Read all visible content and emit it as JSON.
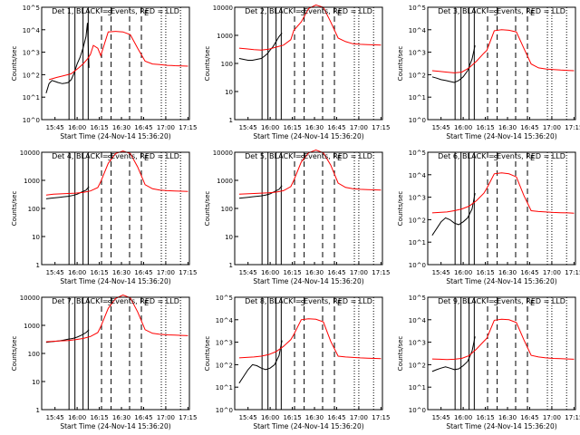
{
  "figure": {
    "start_time_label": "Start Time (24-Nov-14 15:36:20)",
    "ylabel": "Counts/sec",
    "x_ticks": [
      "15:45",
      "16:00",
      "16:15",
      "16:30",
      "16:45",
      "17:00",
      "17:15"
    ],
    "tick_minutes": [
      9,
      24,
      39,
      54,
      69,
      84,
      99
    ],
    "x_range_minutes_after_start": [
      0,
      100
    ],
    "colors": {
      "events": "#000000",
      "lld": "#ff0000",
      "axis": "#000000"
    },
    "vertical_markers": {
      "solid_minutes": [
        18.5,
        22.5,
        28,
        31.5
      ],
      "dashed_minutes": [
        40.5,
        47,
        59.5,
        67.5
      ],
      "dotted_minutes": [
        81,
        84,
        94
      ]
    },
    "markers": [
      "S",
      "E"
    ]
  },
  "chart_data": [
    {
      "type": "line",
      "title": "Det 1, BLACK = Events, RED = LLD",
      "ylabel": "Counts/sec",
      "scale": "log",
      "ylim": [
        1,
        100000
      ],
      "y_ticks": [
        "10^5",
        "10^4",
        "10^3",
        "10^2",
        "10^1",
        "10^0"
      ],
      "series": [
        {
          "name": "Events",
          "x": [
            3,
            5,
            7,
            9,
            11,
            14,
            16,
            18,
            20,
            22,
            24,
            26,
            28,
            30,
            31,
            32
          ],
          "y": [
            15,
            40,
            55,
            50,
            45,
            40,
            42,
            45,
            60,
            120,
            300,
            600,
            1500,
            5000,
            20000,
            200
          ]
        },
        {
          "name": "LLD",
          "x": [
            5,
            10,
            15,
            20,
            25,
            28,
            31,
            33,
            35,
            38,
            40,
            45,
            50,
            55,
            60,
            65,
            70,
            75,
            80,
            85,
            88,
            90,
            95,
            99
          ],
          "y": [
            60,
            75,
            90,
            110,
            200,
            300,
            500,
            800,
            2000,
            1500,
            700,
            8000,
            8500,
            8000,
            6000,
            1500,
            400,
            300,
            280,
            260,
            255,
            250,
            245,
            240
          ]
        }
      ]
    },
    {
      "type": "line",
      "title": "Det 2, BLACK = Events, RED = LLD",
      "ylabel": "Counts/sec",
      "scale": "log",
      "ylim": [
        1,
        10000
      ],
      "y_ticks": [
        "10000",
        "1000",
        "100",
        "10",
        "1"
      ],
      "series": [
        {
          "name": "Events",
          "x": [
            3,
            6,
            9,
            12,
            15,
            18,
            20,
            22,
            24,
            26,
            28,
            30,
            32
          ],
          "y": [
            150,
            140,
            130,
            130,
            140,
            150,
            180,
            220,
            300,
            400,
            600,
            900,
            1200
          ]
        },
        {
          "name": "LLD",
          "x": [
            3,
            8,
            13,
            18,
            23,
            28,
            33,
            38,
            40,
            45,
            50,
            55,
            60,
            65,
            70,
            75,
            80,
            85,
            90,
            95,
            99
          ],
          "y": [
            350,
            330,
            310,
            300,
            320,
            380,
            450,
            700,
            1500,
            3000,
            9000,
            12000,
            10000,
            3000,
            800,
            600,
            500,
            480,
            470,
            460,
            450
          ]
        }
      ]
    },
    {
      "type": "line",
      "title": "Det 3, BLACK = Events, RED = LLD",
      "ylabel": "Counts/sec",
      "scale": "log",
      "ylim": [
        1,
        100000
      ],
      "y_ticks": [
        "10^5",
        "10^4",
        "10^3",
        "10^2",
        "10^1",
        "10^0"
      ],
      "series": [
        {
          "name": "Events",
          "x": [
            3,
            6,
            9,
            12,
            15,
            18,
            21,
            24,
            27,
            30,
            32
          ],
          "y": [
            80,
            70,
            60,
            55,
            50,
            45,
            55,
            80,
            150,
            500,
            2000
          ]
        },
        {
          "name": "LLD",
          "x": [
            3,
            8,
            13,
            18,
            23,
            28,
            33,
            38,
            40,
            45,
            50,
            55,
            60,
            65,
            70,
            75,
            80,
            85,
            90,
            95,
            99
          ],
          "y": [
            150,
            140,
            130,
            120,
            130,
            200,
            400,
            900,
            1200,
            9000,
            10000,
            9500,
            8000,
            1500,
            300,
            200,
            180,
            170,
            160,
            155,
            150
          ]
        }
      ]
    },
    {
      "type": "line",
      "title": "Det 4, BLACK = Events, RED = LLD",
      "ylabel": "Counts/sec",
      "scale": "log",
      "ylim": [
        1,
        10000
      ],
      "y_ticks": [
        "10000",
        "1000",
        "100",
        "10",
        "1"
      ],
      "series": [
        {
          "name": "Events",
          "x": [
            3,
            6,
            9,
            12,
            15,
            18,
            21,
            24,
            27,
            30,
            32
          ],
          "y": [
            220,
            230,
            240,
            250,
            260,
            270,
            290,
            320,
            380,
            450,
            600
          ]
        },
        {
          "name": "LLD",
          "x": [
            3,
            8,
            13,
            18,
            23,
            28,
            33,
            38,
            40,
            45,
            50,
            55,
            60,
            65,
            70,
            75,
            80,
            85,
            90,
            95,
            99
          ],
          "y": [
            300,
            320,
            330,
            340,
            350,
            370,
            420,
            550,
            900,
            4000,
            9000,
            11000,
            9000,
            3000,
            700,
            500,
            450,
            430,
            420,
            410,
            400
          ]
        }
      ]
    },
    {
      "type": "line",
      "title": "Det 5, BLACK = Events, RED = LLD",
      "ylabel": "Counts/sec",
      "scale": "log",
      "ylim": [
        1,
        10000
      ],
      "y_ticks": [
        "10000",
        "1000",
        "100",
        "10",
        "1"
      ],
      "series": [
        {
          "name": "Events",
          "x": [
            3,
            6,
            9,
            12,
            15,
            18,
            21,
            24,
            27,
            30,
            32
          ],
          "y": [
            230,
            240,
            250,
            260,
            270,
            280,
            300,
            330,
            400,
            480,
            650
          ]
        },
        {
          "name": "LLD",
          "x": [
            3,
            8,
            13,
            18,
            23,
            28,
            33,
            38,
            40,
            45,
            50,
            55,
            60,
            65,
            70,
            75,
            80,
            85,
            90,
            95,
            99
          ],
          "y": [
            320,
            330,
            340,
            350,
            360,
            380,
            430,
            600,
            1000,
            4500,
            9500,
            12000,
            9500,
            3500,
            800,
            560,
            500,
            480,
            470,
            460,
            450
          ]
        }
      ]
    },
    {
      "type": "line",
      "title": "Det 6, BLACK = Events, RED = LLD",
      "ylabel": "Counts/sec",
      "scale": "log",
      "ylim": [
        1,
        100000
      ],
      "y_ticks": [
        "10^5",
        "10^4",
        "10^3",
        "10^2",
        "10^1",
        "10^0"
      ],
      "series": [
        {
          "name": "Events",
          "x": [
            3,
            6,
            9,
            12,
            15,
            18,
            21,
            24,
            27,
            30,
            32
          ],
          "y": [
            20,
            40,
            80,
            120,
            100,
            70,
            60,
            80,
            120,
            300,
            1500
          ]
        },
        {
          "name": "LLD",
          "x": [
            3,
            8,
            13,
            18,
            23,
            28,
            33,
            38,
            40,
            45,
            50,
            55,
            60,
            65,
            70,
            75,
            80,
            85,
            90,
            95,
            99
          ],
          "y": [
            200,
            210,
            220,
            250,
            300,
            400,
            700,
            1500,
            2500,
            11000,
            12000,
            11000,
            8000,
            1200,
            250,
            230,
            220,
            210,
            205,
            200,
            195
          ]
        }
      ]
    },
    {
      "type": "line",
      "title": "Det 7, BLACK = Events, RED = LLD",
      "ylabel": "Counts/sec",
      "scale": "log",
      "ylim": [
        1,
        10000
      ],
      "y_ticks": [
        "10000",
        "1000",
        "100",
        "10",
        "1"
      ],
      "series": [
        {
          "name": "Events",
          "x": [
            3,
            6,
            9,
            12,
            15,
            18,
            21,
            24,
            27,
            30,
            32
          ],
          "y": [
            250,
            260,
            270,
            280,
            300,
            320,
            340,
            380,
            450,
            550,
            700
          ]
        },
        {
          "name": "LLD",
          "x": [
            3,
            8,
            13,
            18,
            23,
            28,
            33,
            38,
            40,
            45,
            50,
            55,
            60,
            65,
            70,
            75,
            80,
            85,
            90,
            95,
            99
          ],
          "y": [
            260,
            270,
            280,
            290,
            310,
            340,
            400,
            550,
            900,
            4000,
            9000,
            12000,
            9500,
            3000,
            700,
            520,
            480,
            460,
            450,
            440,
            430
          ]
        }
      ]
    },
    {
      "type": "line",
      "title": "Det 8, BLACK = Events, RED = LLD",
      "ylabel": "Counts/sec",
      "scale": "log",
      "ylim": [
        1,
        100000
      ],
      "y_ticks": [
        "10^5",
        "10^4",
        "10^3",
        "10^2",
        "10^1",
        "10^0"
      ],
      "series": [
        {
          "name": "Events",
          "x": [
            3,
            6,
            9,
            12,
            15,
            18,
            21,
            24,
            27,
            30,
            32
          ],
          "y": [
            15,
            30,
            60,
            100,
            90,
            70,
            60,
            70,
            100,
            250,
            1200
          ]
        },
        {
          "name": "LLD",
          "x": [
            3,
            8,
            13,
            18,
            23,
            28,
            33,
            38,
            40,
            45,
            50,
            55,
            60,
            65,
            70,
            75,
            80,
            85,
            90,
            95,
            99
          ],
          "y": [
            200,
            210,
            220,
            240,
            280,
            380,
            650,
            1300,
            2200,
            10000,
            11000,
            10500,
            8000,
            1100,
            240,
            220,
            210,
            200,
            195,
            190,
            185
          ]
        }
      ]
    },
    {
      "type": "line",
      "title": "Det 9, BLACK = Events, RED = LLD",
      "ylabel": "Counts/sec",
      "scale": "log",
      "ylim": [
        1,
        100000
      ],
      "y_ticks": [
        "10^5",
        "10^4",
        "10^3",
        "10^2",
        "10^1",
        "10^0"
      ],
      "series": [
        {
          "name": "Events",
          "x": [
            3,
            6,
            9,
            12,
            15,
            18,
            21,
            24,
            27,
            30,
            32
          ],
          "y": [
            50,
            60,
            70,
            80,
            70,
            60,
            65,
            90,
            140,
            400,
            1800
          ]
        },
        {
          "name": "LLD",
          "x": [
            3,
            8,
            13,
            18,
            23,
            28,
            33,
            38,
            40,
            45,
            50,
            55,
            60,
            65,
            70,
            75,
            80,
            85,
            90,
            95,
            99
          ],
          "y": [
            180,
            175,
            170,
            175,
            190,
            250,
            500,
            1100,
            1500,
            9500,
            10500,
            10000,
            7500,
            1300,
            260,
            220,
            200,
            190,
            185,
            180,
            175
          ]
        }
      ]
    }
  ]
}
